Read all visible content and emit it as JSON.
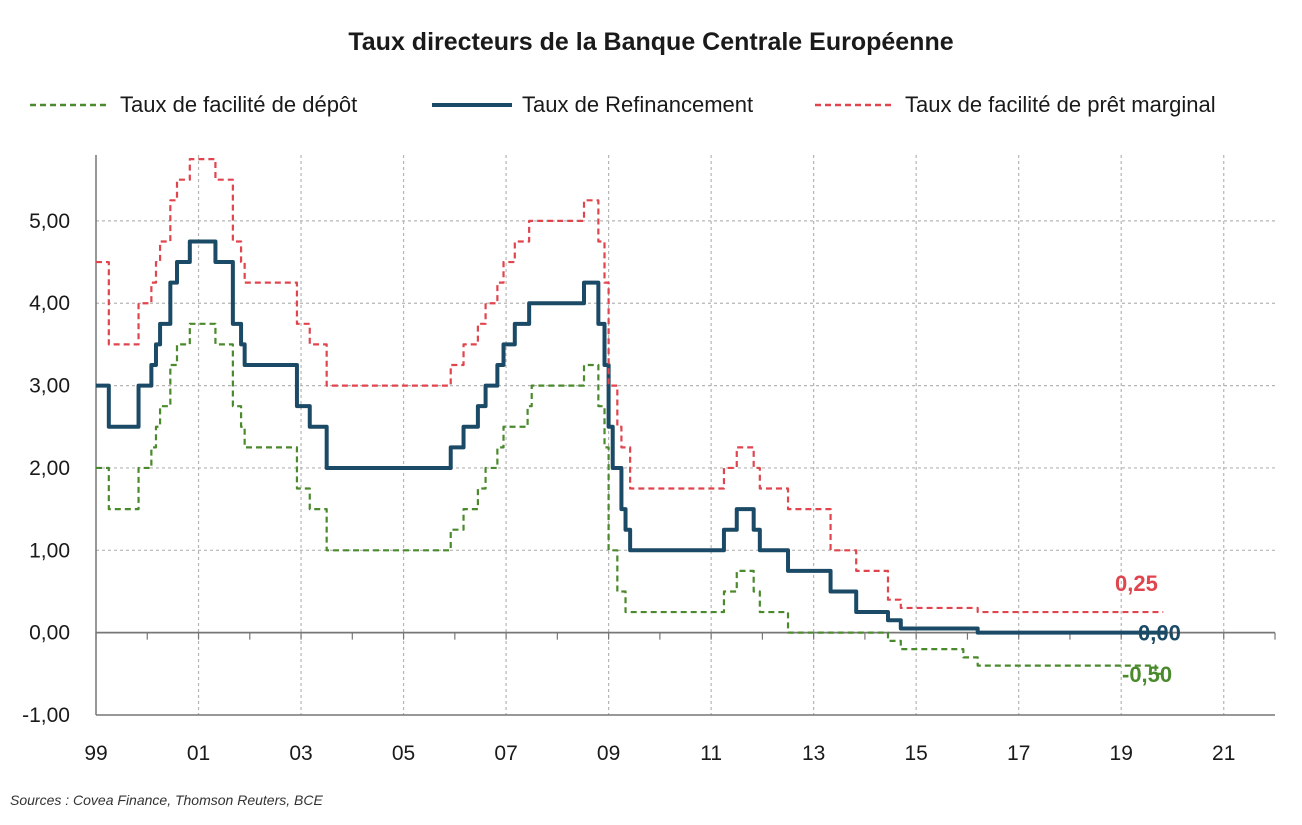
{
  "chart_data": {
    "type": "line",
    "title": "Taux directeurs de la Banque Centrale Européenne",
    "xlabel": "",
    "ylabel": "",
    "x_ticks": [
      "99",
      "01",
      "03",
      "05",
      "07",
      "09",
      "11",
      "13",
      "15",
      "17",
      "19",
      "21"
    ],
    "y_ticks": [
      "-1,00",
      "0,00",
      "1,00",
      "2,00",
      "3,00",
      "4,00",
      "5,00"
    ],
    "ylim": [
      -1.0,
      5.8
    ],
    "xlim": [
      1999.0,
      2022.0
    ],
    "grid": true,
    "legend_position": "top",
    "series": [
      {
        "name": "Taux de facilité de dépôt",
        "color": "#4a8a2c",
        "style": "dashed",
        "end_label": "-0,50",
        "points": [
          [
            1999.0,
            2.0
          ],
          [
            1999.25,
            1.5
          ],
          [
            1999.83,
            2.0
          ],
          [
            2000.08,
            2.25
          ],
          [
            2000.17,
            2.5
          ],
          [
            2000.25,
            2.75
          ],
          [
            2000.45,
            3.25
          ],
          [
            2000.58,
            3.5
          ],
          [
            2000.83,
            3.75
          ],
          [
            2001.33,
            3.5
          ],
          [
            2001.67,
            2.75
          ],
          [
            2001.83,
            2.5
          ],
          [
            2001.9,
            2.25
          ],
          [
            2002.92,
            1.75
          ],
          [
            2003.17,
            1.5
          ],
          [
            2003.5,
            1.0
          ],
          [
            2005.92,
            1.25
          ],
          [
            2006.17,
            1.5
          ],
          [
            2006.45,
            1.75
          ],
          [
            2006.6,
            2.0
          ],
          [
            2006.83,
            2.25
          ],
          [
            2006.95,
            2.5
          ],
          [
            2007.42,
            2.75
          ],
          [
            2007.5,
            3.0
          ],
          [
            2008.52,
            3.25
          ],
          [
            2008.8,
            2.75
          ],
          [
            2008.92,
            2.25
          ],
          [
            2009.0,
            1.0
          ],
          [
            2009.17,
            0.5
          ],
          [
            2009.33,
            0.25
          ],
          [
            2011.25,
            0.5
          ],
          [
            2011.5,
            0.75
          ],
          [
            2011.83,
            0.5
          ],
          [
            2011.95,
            0.25
          ],
          [
            2012.5,
            0.0
          ],
          [
            2014.45,
            -0.1
          ],
          [
            2014.7,
            -0.2
          ],
          [
            2015.92,
            -0.3
          ],
          [
            2016.2,
            -0.4
          ],
          [
            2019.67,
            -0.5
          ]
        ]
      },
      {
        "name": "Taux de Refinancement",
        "color": "#1b4a66",
        "style": "solid",
        "end_label": "0,00",
        "points": [
          [
            1999.0,
            3.0
          ],
          [
            1999.25,
            2.5
          ],
          [
            1999.83,
            3.0
          ],
          [
            2000.08,
            3.25
          ],
          [
            2000.17,
            3.5
          ],
          [
            2000.25,
            3.75
          ],
          [
            2000.45,
            4.25
          ],
          [
            2000.58,
            4.5
          ],
          [
            2000.83,
            4.75
          ],
          [
            2001.33,
            4.5
          ],
          [
            2001.67,
            3.75
          ],
          [
            2001.83,
            3.5
          ],
          [
            2001.9,
            3.25
          ],
          [
            2002.92,
            2.75
          ],
          [
            2003.17,
            2.5
          ],
          [
            2003.5,
            2.0
          ],
          [
            2005.92,
            2.25
          ],
          [
            2006.17,
            2.5
          ],
          [
            2006.45,
            2.75
          ],
          [
            2006.6,
            3.0
          ],
          [
            2006.83,
            3.25
          ],
          [
            2006.95,
            3.5
          ],
          [
            2007.17,
            3.75
          ],
          [
            2007.45,
            4.0
          ],
          [
            2008.52,
            4.25
          ],
          [
            2008.8,
            3.75
          ],
          [
            2008.92,
            3.25
          ],
          [
            2009.0,
            2.5
          ],
          [
            2009.08,
            2.0
          ],
          [
            2009.25,
            1.5
          ],
          [
            2009.33,
            1.25
          ],
          [
            2009.42,
            1.0
          ],
          [
            2011.25,
            1.25
          ],
          [
            2011.5,
            1.5
          ],
          [
            2011.83,
            1.25
          ],
          [
            2011.95,
            1.0
          ],
          [
            2012.5,
            0.75
          ],
          [
            2013.33,
            0.5
          ],
          [
            2013.83,
            0.25
          ],
          [
            2014.45,
            0.15
          ],
          [
            2014.7,
            0.05
          ],
          [
            2016.2,
            0.0
          ],
          [
            2019.75,
            0.0
          ]
        ]
      },
      {
        "name": "Taux de facilité de prêt marginal",
        "color": "#e0454e",
        "style": "dashed",
        "end_label": "0,25",
        "points": [
          [
            1999.0,
            4.5
          ],
          [
            1999.25,
            3.5
          ],
          [
            1999.83,
            4.0
          ],
          [
            2000.08,
            4.25
          ],
          [
            2000.17,
            4.5
          ],
          [
            2000.25,
            4.75
          ],
          [
            2000.45,
            5.25
          ],
          [
            2000.58,
            5.5
          ],
          [
            2000.83,
            5.75
          ],
          [
            2001.33,
            5.5
          ],
          [
            2001.67,
            4.75
          ],
          [
            2001.83,
            4.5
          ],
          [
            2001.9,
            4.25
          ],
          [
            2002.92,
            3.75
          ],
          [
            2003.17,
            3.5
          ],
          [
            2003.5,
            3.0
          ],
          [
            2005.92,
            3.25
          ],
          [
            2006.17,
            3.5
          ],
          [
            2006.45,
            3.75
          ],
          [
            2006.6,
            4.0
          ],
          [
            2006.83,
            4.25
          ],
          [
            2006.95,
            4.5
          ],
          [
            2007.17,
            4.75
          ],
          [
            2007.45,
            5.0
          ],
          [
            2008.52,
            5.25
          ],
          [
            2008.8,
            4.75
          ],
          [
            2008.92,
            4.25
          ],
          [
            2009.0,
            3.0
          ],
          [
            2009.17,
            2.5
          ],
          [
            2009.25,
            2.25
          ],
          [
            2009.42,
            1.75
          ],
          [
            2011.25,
            2.0
          ],
          [
            2011.5,
            2.25
          ],
          [
            2011.83,
            2.0
          ],
          [
            2011.95,
            1.75
          ],
          [
            2012.5,
            1.5
          ],
          [
            2013.33,
            1.0
          ],
          [
            2013.83,
            0.75
          ],
          [
            2014.45,
            0.4
          ],
          [
            2014.7,
            0.3
          ],
          [
            2016.2,
            0.25
          ],
          [
            2019.67,
            0.25
          ]
        ]
      }
    ],
    "source": "Sources : Covea Finance,  Thomson Reuters, BCE"
  }
}
